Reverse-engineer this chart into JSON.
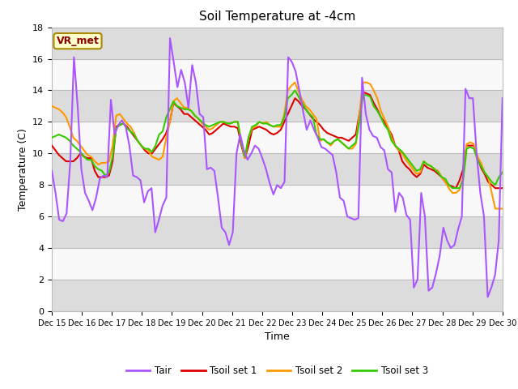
{
  "title": "Soil Temperature at -4cm",
  "xlabel": "Time",
  "ylabel": "Temperature (C)",
  "ylim": [
    0,
    18
  ],
  "xlim": [
    0,
    15
  ],
  "x_tick_labels": [
    "Dec 15",
    "Dec 16",
    "Dec 17",
    "Dec 18",
    "Dec 19",
    "Dec 20",
    "Dec 21",
    "Dec 22",
    "Dec 23",
    "Dec 24",
    "Dec 25",
    "Dec 26",
    "Dec 27",
    "Dec 28",
    "Dec 29",
    "Dec 30"
  ],
  "yticks": [
    0,
    2,
    4,
    6,
    8,
    10,
    12,
    14,
    16,
    18
  ],
  "annotation_text": "VR_met",
  "annotation_color": "#8B0000",
  "annotation_bg": "#FFFFCC",
  "line_colors": {
    "Tair": "#AA55FF",
    "Tsoil_set1": "#DD0000",
    "Tsoil_set2": "#FF9900",
    "Tsoil_set3": "#33CC00"
  },
  "legend_labels": [
    "Tair",
    "Tsoil set 1",
    "Tsoil set 2",
    "Tsoil set 3"
  ],
  "gray_band_color": "#DCDCDC",
  "white_band_color": "#F8F8F8",
  "plot_bg": "#F8F8F8",
  "Tair": [
    8.9,
    7.5,
    5.8,
    5.7,
    6.2,
    9.5,
    16.1,
    13.0,
    9.0,
    7.5,
    7.0,
    6.4,
    7.2,
    8.4,
    8.6,
    8.5,
    13.4,
    11.2,
    11.8,
    12.1,
    11.7,
    10.5,
    8.6,
    8.5,
    8.3,
    6.9,
    7.6,
    7.8,
    5.0,
    5.8,
    6.7,
    7.2,
    17.3,
    15.8,
    14.2,
    15.3,
    14.5,
    12.9,
    15.6,
    14.5,
    12.5,
    12.3,
    9.0,
    9.1,
    8.9,
    7.2,
    5.3,
    5.0,
    4.2,
    5.0,
    10.0,
    11.2,
    10.2,
    9.6,
    10.0,
    10.5,
    10.3,
    9.7,
    9.0,
    8.1,
    7.4,
    8.0,
    7.8,
    8.2,
    16.1,
    15.8,
    15.2,
    14.0,
    12.7,
    11.5,
    12.1,
    11.5,
    11.0,
    10.4,
    10.3,
    10.1,
    9.9,
    8.8,
    7.2,
    7.0,
    6.0,
    5.9,
    5.8,
    5.9,
    14.8,
    12.5,
    11.5,
    11.1,
    11.0,
    10.4,
    10.2,
    9.0,
    8.8,
    6.3,
    7.5,
    7.2,
    6.1,
    5.8,
    1.5,
    2.0,
    7.5,
    6.0,
    1.3,
    1.5,
    2.4,
    3.5,
    5.3,
    4.5,
    4.0,
    4.2,
    5.2,
    6.0,
    14.1,
    13.5,
    13.5,
    10.0,
    7.5,
    6.0,
    0.9,
    1.5,
    2.3,
    4.5,
    13.5
  ],
  "Tsoil1": [
    10.5,
    10.2,
    9.9,
    9.7,
    9.5,
    9.5,
    9.5,
    9.7,
    10.0,
    9.8,
    9.7,
    9.7,
    8.9,
    8.5,
    8.5,
    8.5,
    8.6,
    9.5,
    11.7,
    11.8,
    11.9,
    11.7,
    11.4,
    11.1,
    10.8,
    10.5,
    10.2,
    10.0,
    10.0,
    10.3,
    10.6,
    10.9,
    11.3,
    12.0,
    13.2,
    13.0,
    12.8,
    12.5,
    12.5,
    12.3,
    12.1,
    11.9,
    11.7,
    11.5,
    11.2,
    11.3,
    11.5,
    11.7,
    11.9,
    11.8,
    11.7,
    11.7,
    11.6,
    10.5,
    9.7,
    10.5,
    11.5,
    11.6,
    11.7,
    11.6,
    11.5,
    11.3,
    11.2,
    11.3,
    11.5,
    12.0,
    12.5,
    13.0,
    13.5,
    13.3,
    13.0,
    12.8,
    12.5,
    12.2,
    12.0,
    11.8,
    11.5,
    11.3,
    11.2,
    11.1,
    11.0,
    11.0,
    10.9,
    10.8,
    11.0,
    11.2,
    12.5,
    13.9,
    13.8,
    13.7,
    13.2,
    12.8,
    12.3,
    12.0,
    11.6,
    11.2,
    10.5,
    10.2,
    9.5,
    9.2,
    9.0,
    8.7,
    8.5,
    8.7,
    9.3,
    9.1,
    9.0,
    8.9,
    8.7,
    8.5,
    8.2,
    8.0,
    7.9,
    7.8,
    8.3,
    9.0,
    10.5,
    10.5,
    10.5,
    9.8,
    9.1,
    8.7,
    8.2,
    8.0,
    7.8,
    7.8,
    7.8
  ],
  "Tsoil2": [
    13.0,
    12.9,
    12.8,
    12.6,
    12.3,
    11.7,
    11.0,
    10.8,
    10.5,
    10.2,
    9.9,
    9.8,
    9.5,
    9.3,
    9.4,
    9.4,
    9.5,
    10.5,
    12.4,
    12.5,
    12.2,
    11.9,
    11.7,
    11.3,
    10.8,
    10.5,
    10.3,
    10.2,
    9.8,
    9.7,
    9.6,
    9.8,
    11.0,
    12.0,
    13.3,
    13.5,
    13.2,
    12.9,
    12.9,
    12.7,
    12.4,
    12.2,
    11.9,
    11.7,
    11.5,
    11.6,
    11.8,
    12.0,
    12.0,
    11.9,
    11.9,
    12.0,
    12.0,
    10.7,
    9.7,
    11.0,
    11.6,
    11.7,
    12.0,
    11.9,
    12.0,
    11.8,
    11.7,
    11.7,
    11.7,
    12.5,
    14.0,
    14.3,
    14.5,
    13.9,
    13.4,
    13.0,
    12.8,
    12.5,
    12.2,
    10.8,
    10.9,
    10.7,
    10.5,
    10.8,
    10.9,
    10.7,
    10.5,
    10.3,
    10.3,
    10.6,
    12.5,
    14.5,
    14.5,
    14.4,
    14.0,
    13.5,
    12.7,
    12.2,
    11.7,
    11.0,
    10.5,
    10.2,
    10.0,
    9.6,
    9.3,
    9.0,
    8.7,
    8.8,
    9.5,
    9.3,
    9.2,
    9.0,
    8.9,
    8.5,
    8.2,
    7.8,
    7.5,
    7.5,
    7.7,
    8.5,
    10.6,
    10.7,
    10.6,
    9.8,
    9.4,
    8.8,
    8.5,
    7.5,
    6.5,
    6.5,
    6.5
  ],
  "Tsoil3": [
    11.0,
    11.1,
    11.2,
    11.1,
    11.0,
    10.8,
    10.5,
    10.3,
    10.1,
    9.8,
    9.6,
    9.6,
    9.2,
    9.0,
    8.9,
    8.6,
    8.8,
    9.8,
    11.6,
    11.8,
    11.9,
    11.6,
    11.4,
    11.2,
    10.8,
    10.5,
    10.3,
    10.3,
    10.1,
    10.5,
    11.2,
    11.4,
    12.3,
    12.8,
    13.3,
    13.0,
    12.9,
    12.8,
    12.8,
    12.7,
    12.4,
    12.2,
    12.0,
    11.8,
    11.7,
    11.8,
    11.9,
    12.0,
    12.0,
    11.9,
    11.9,
    12.0,
    12.0,
    10.7,
    9.8,
    11.0,
    11.7,
    11.8,
    12.0,
    11.9,
    11.9,
    11.8,
    11.7,
    11.8,
    11.8,
    12.3,
    13.5,
    13.7,
    14.0,
    13.6,
    13.2,
    12.8,
    12.5,
    12.3,
    11.2,
    10.9,
    10.9,
    10.7,
    10.6,
    10.8,
    10.9,
    10.7,
    10.5,
    10.3,
    10.5,
    10.7,
    12.0,
    13.7,
    13.7,
    13.6,
    13.0,
    12.7,
    12.3,
    11.8,
    11.5,
    10.8,
    10.5,
    10.3,
    10.1,
    9.8,
    9.5,
    9.2,
    8.9,
    9.0,
    9.5,
    9.3,
    9.2,
    9.0,
    8.8,
    8.5,
    8.4,
    8.0,
    7.8,
    7.8,
    7.8,
    8.3,
    10.3,
    10.4,
    10.3,
    9.6,
    9.2,
    8.8,
    8.5,
    8.2,
    8.0,
    8.5,
    8.8
  ]
}
